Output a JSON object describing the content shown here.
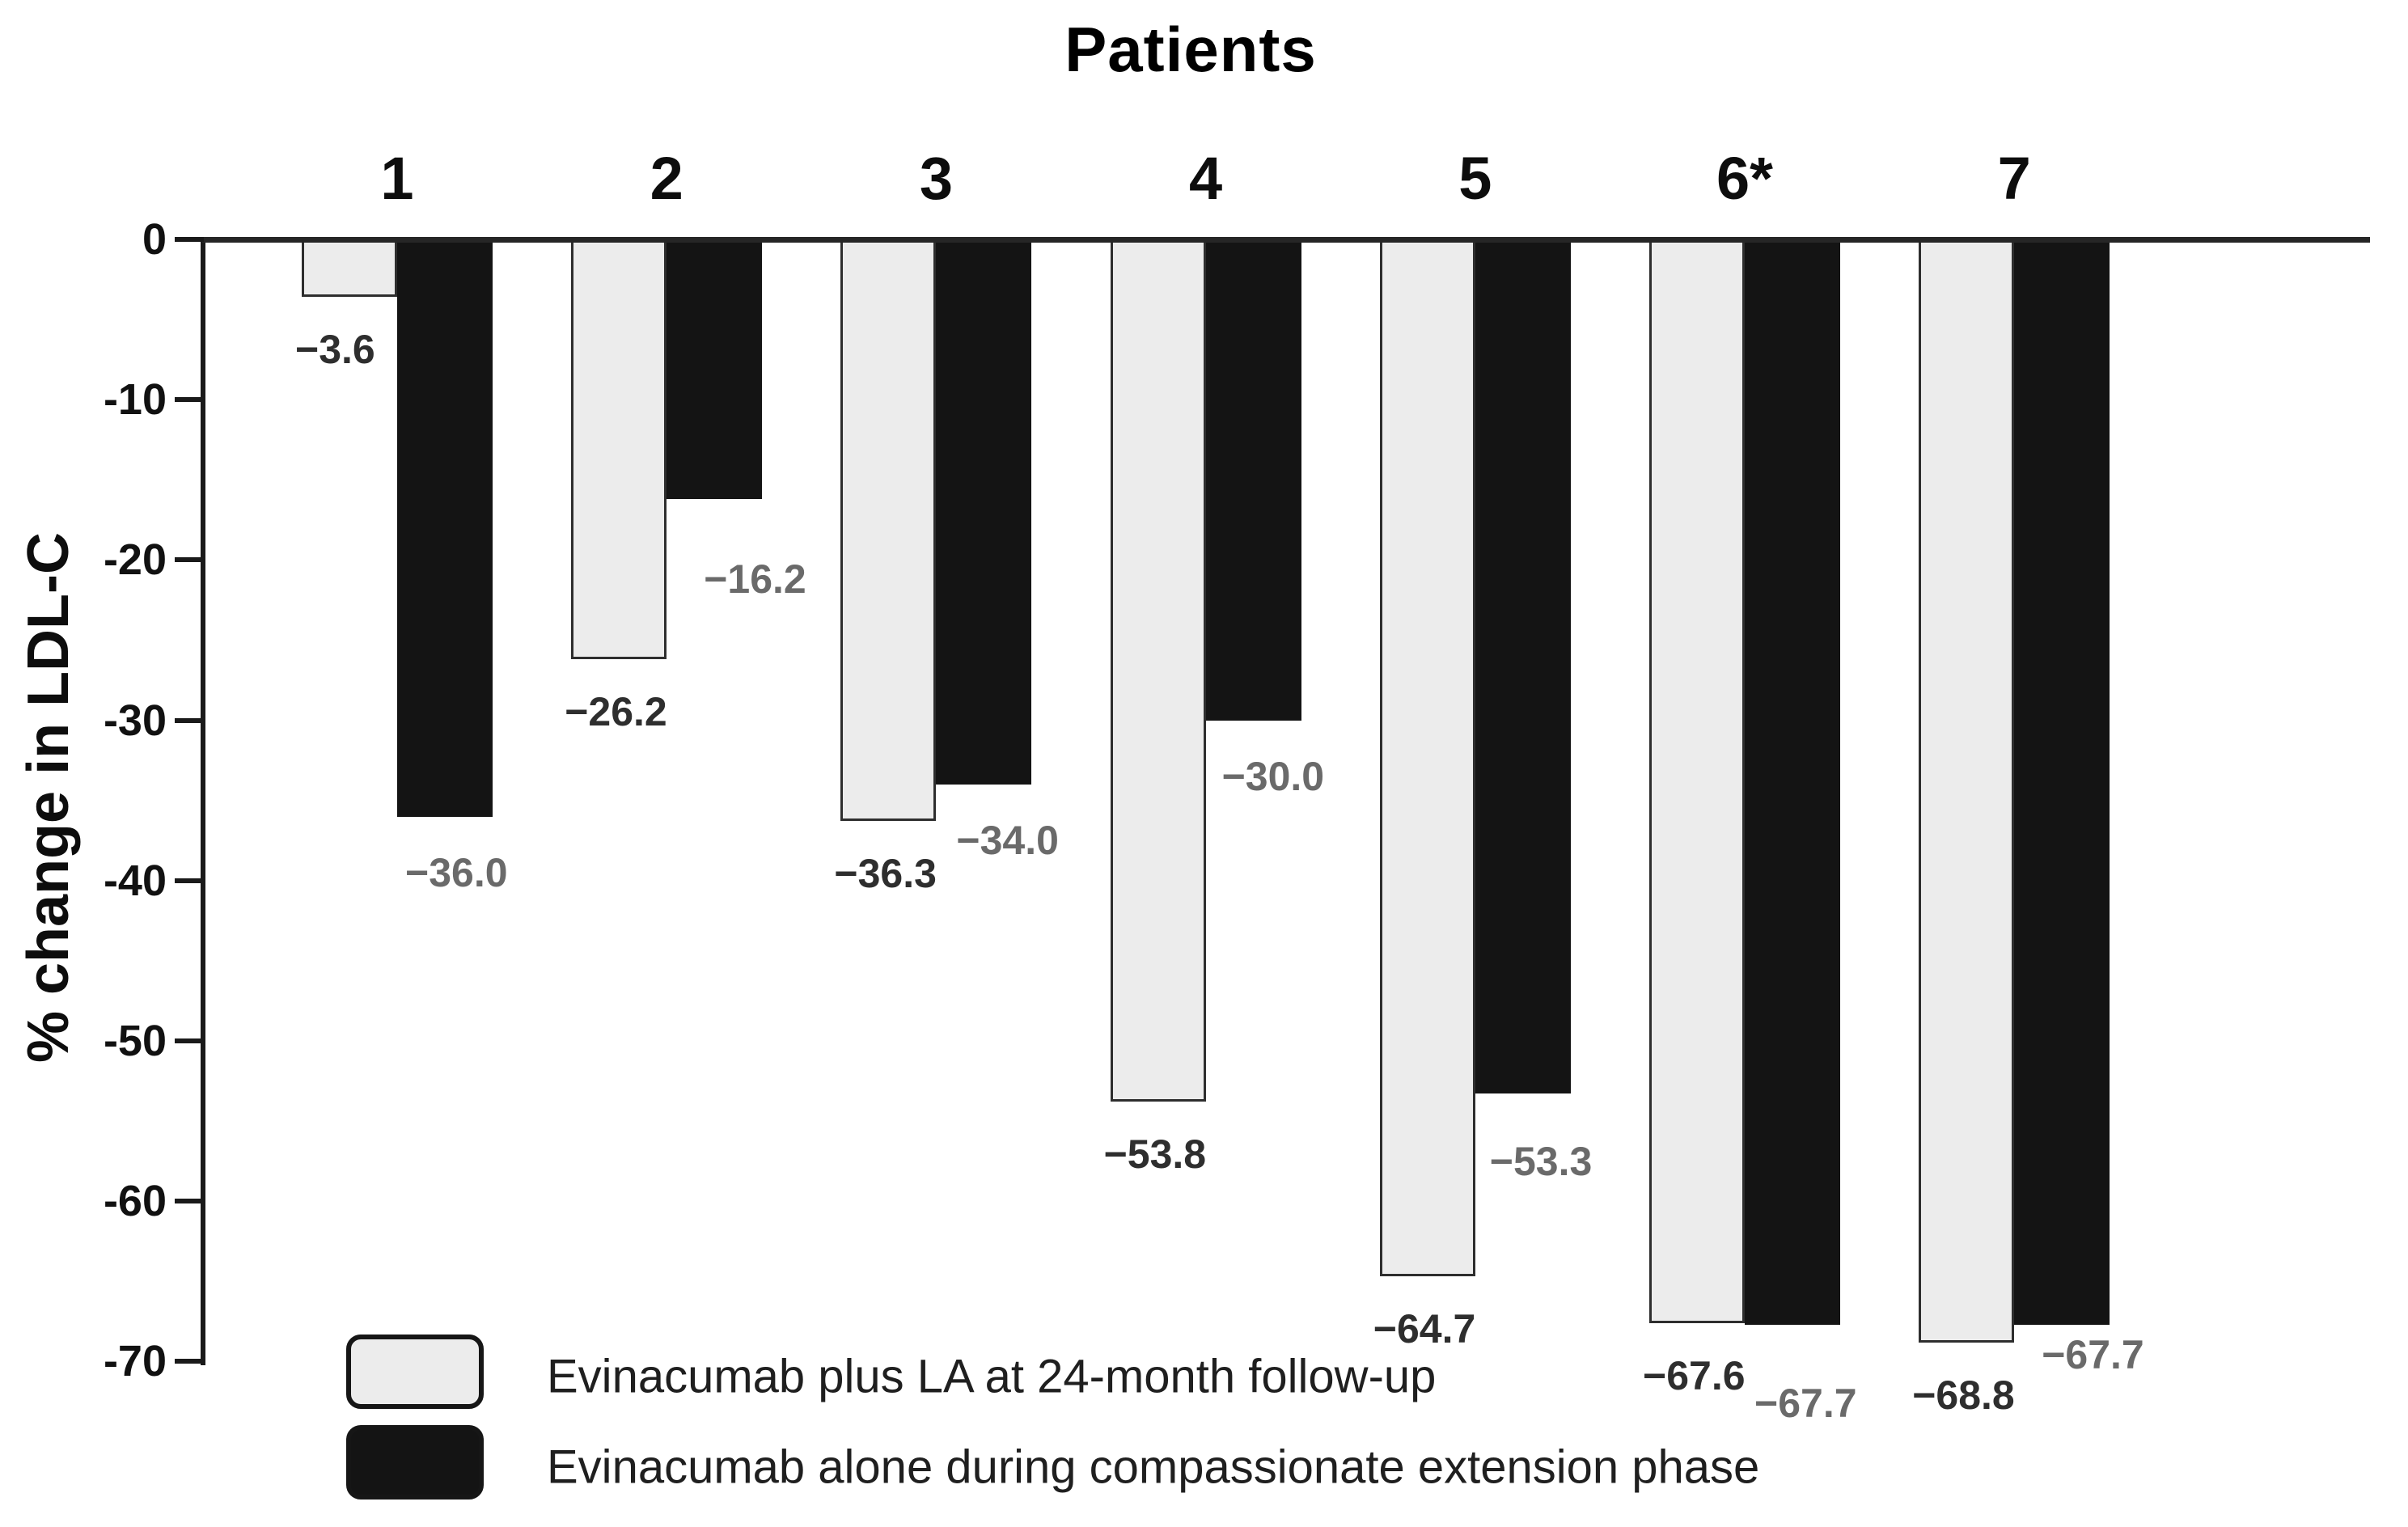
{
  "title": "Patients",
  "y_axis": {
    "label": "% change in LDL-C",
    "ticks": [
      {
        "label": "0",
        "value": 0
      },
      {
        "label": "-10",
        "value": -10
      },
      {
        "label": "-20",
        "value": -20
      },
      {
        "label": "-30",
        "value": -30
      },
      {
        "label": "-40",
        "value": -40
      },
      {
        "label": "-50",
        "value": -50
      },
      {
        "label": "-60",
        "value": -60
      },
      {
        "label": "-70",
        "value": -70
      }
    ]
  },
  "legend": {
    "items": [
      {
        "label": "Evinacumab plus LA at 24-month follow-up",
        "color": "#ececec",
        "border": "#161616"
      },
      {
        "label": "Evinacumab alone during compassionate extension phase",
        "color": "#141414",
        "border": "#161616"
      }
    ]
  },
  "chart_data": {
    "type": "bar",
    "title": "Patients",
    "xlabel": "Patients",
    "ylabel": "% change in LDL-C",
    "ylim": [
      -70,
      0
    ],
    "grid": false,
    "legend_position": "bottom-left",
    "categories": [
      "1",
      "2",
      "3",
      "4",
      "5",
      "6*",
      "7"
    ],
    "series": [
      {
        "name": "Evinacumab plus LA at 24-month follow-up",
        "color": "#ececec",
        "border_color": "#2e2e2e",
        "label_color": "#2e2e2e",
        "values": [
          -3.6,
          -26.2,
          -36.3,
          -53.8,
          -64.7,
          -67.6,
          -68.8
        ],
        "labels": [
          "−3.6",
          "−26.2",
          "−36.3",
          "−53.8",
          "−64.7",
          "−67.6",
          "−68.8"
        ]
      },
      {
        "name": "Evinacumab alone during compassionate extension phase",
        "color": "#141414",
        "border_color": "#141414",
        "label_color": "#6a6a6a",
        "values": [
          -36.0,
          -16.2,
          -34.0,
          -30.0,
          -53.3,
          -67.7,
          -67.7
        ],
        "labels": [
          "−36.0",
          "−16.2",
          "−34.0",
          "−30.0",
          "−53.3",
          "−67.7",
          "−67.7"
        ]
      }
    ]
  },
  "colors": {
    "background": "#ffffff",
    "axis": "#1a1a1a",
    "zero_line": "#262626",
    "tick_text": "#111111",
    "title_text": "#000000"
  }
}
